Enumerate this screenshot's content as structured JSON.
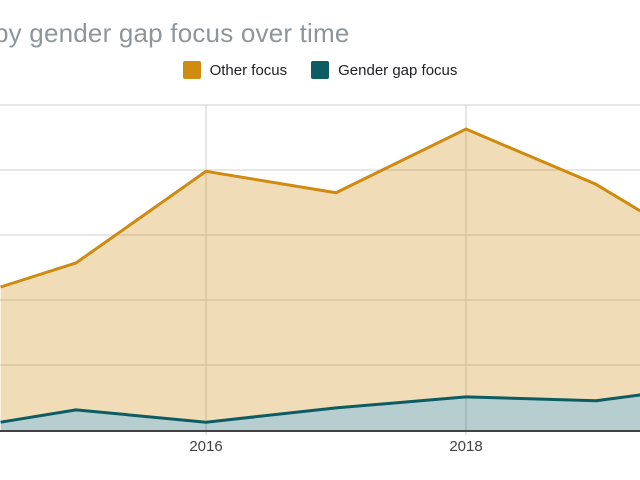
{
  "title": "py gender gap focus over time",
  "legend": [
    {
      "label": "Other focus",
      "color": "#ce8b0f"
    },
    {
      "label": "Gender gap focus",
      "color": "#0d5c63"
    }
  ],
  "colors": {
    "orange_line": "#ce8b0f",
    "orange_fill": "rgba(206,139,15,0.3)",
    "teal_line": "#0d5c63",
    "teal_fill": "rgba(13,92,99,0.3)",
    "gridline": "#d7d9db",
    "axis_line": "#424242",
    "title_text": "#8f969b",
    "tick_text": "#424242"
  },
  "chart_data": {
    "type": "area",
    "title": "py gender gap focus over time",
    "xlabel": "",
    "ylabel": "",
    "legend_position": "top-center",
    "grid": true,
    "y_axis_labels_visible": false,
    "ylim_gridline_units": [
      0,
      5
    ],
    "xticks": [
      {
        "label": "2016",
        "year": 2016
      },
      {
        "label": "2018",
        "year": 2018
      }
    ],
    "note": "Chart cropped at left/right edges; y-axis labels not visible. Values are in gridline units (1 unit = 1 horizontal gridline interval). Edge x-values are fractional years where lines meet the crop.",
    "x": [
      2014.42,
      2015,
      2016,
      2017,
      2018,
      2019,
      2019.34
    ],
    "series": [
      {
        "name": "Other focus",
        "values": [
          2.2,
          2.57,
          3.98,
          3.65,
          4.63,
          3.78,
          3.37
        ]
      },
      {
        "name": "Gender gap focus",
        "values": [
          0.12,
          0.31,
          0.12,
          0.34,
          0.51,
          0.45,
          0.54
        ]
      }
    ]
  }
}
